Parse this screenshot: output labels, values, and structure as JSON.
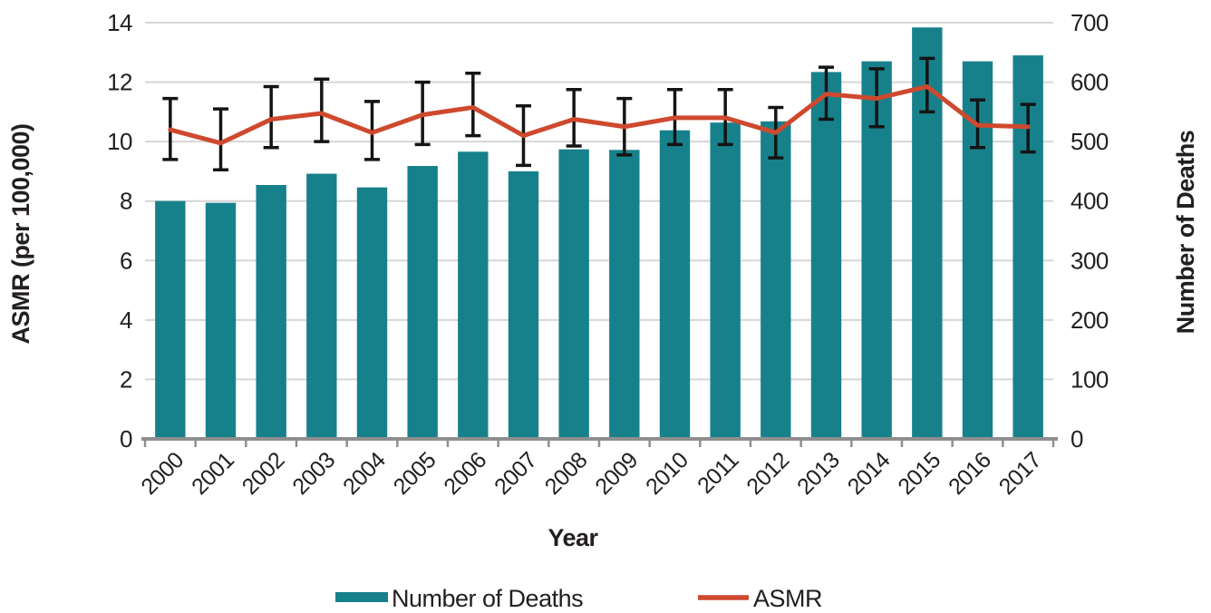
{
  "chart_data": {
    "type": "bar+line",
    "categories": [
      "2000",
      "2001",
      "2002",
      "2003",
      "2004",
      "2005",
      "2006",
      "2007",
      "2008",
      "2009",
      "2010",
      "2011",
      "2012",
      "2013",
      "2014",
      "2015",
      "2016",
      "2017"
    ],
    "x_label": "Year",
    "left_axis": {
      "label": "ASMR (per 100,000)",
      "min": 0,
      "max": 14,
      "tick_step": 2
    },
    "right_axis": {
      "label": "Number of Deaths",
      "min": 0,
      "max": 700,
      "tick_step": 100
    },
    "grid": true,
    "legend_position": "bottom",
    "series": [
      {
        "name": "Number of Deaths",
        "type": "bar",
        "axis": "right",
        "color": "#17818B",
        "values": [
          400,
          397,
          427,
          446,
          423,
          459,
          483,
          450,
          487,
          486,
          519,
          532,
          534,
          617,
          635,
          692,
          635,
          645
        ]
      },
      {
        "name": "ASMR",
        "type": "line",
        "axis": "left",
        "color": "#CE492E",
        "error_color": "#141414",
        "values": [
          10.4,
          9.95,
          10.75,
          10.95,
          10.3,
          10.9,
          11.15,
          10.2,
          10.75,
          10.5,
          10.8,
          10.8,
          10.3,
          11.6,
          11.45,
          11.85,
          10.55,
          10.5
        ],
        "error_low": [
          9.4,
          9.05,
          9.8,
          10.0,
          9.4,
          9.9,
          10.2,
          9.2,
          9.85,
          9.55,
          9.9,
          9.9,
          9.45,
          10.75,
          10.5,
          11.0,
          9.8,
          9.65
        ],
        "error_high": [
          11.45,
          11.1,
          11.85,
          12.1,
          11.35,
          12.0,
          12.3,
          11.2,
          11.75,
          11.45,
          11.75,
          11.75,
          11.15,
          12.5,
          12.45,
          12.8,
          11.4,
          11.25
        ]
      }
    ],
    "colors": {
      "text": "#231F20",
      "gridline": "#D6D6D6",
      "axis_line": "#8F8F8F"
    }
  }
}
